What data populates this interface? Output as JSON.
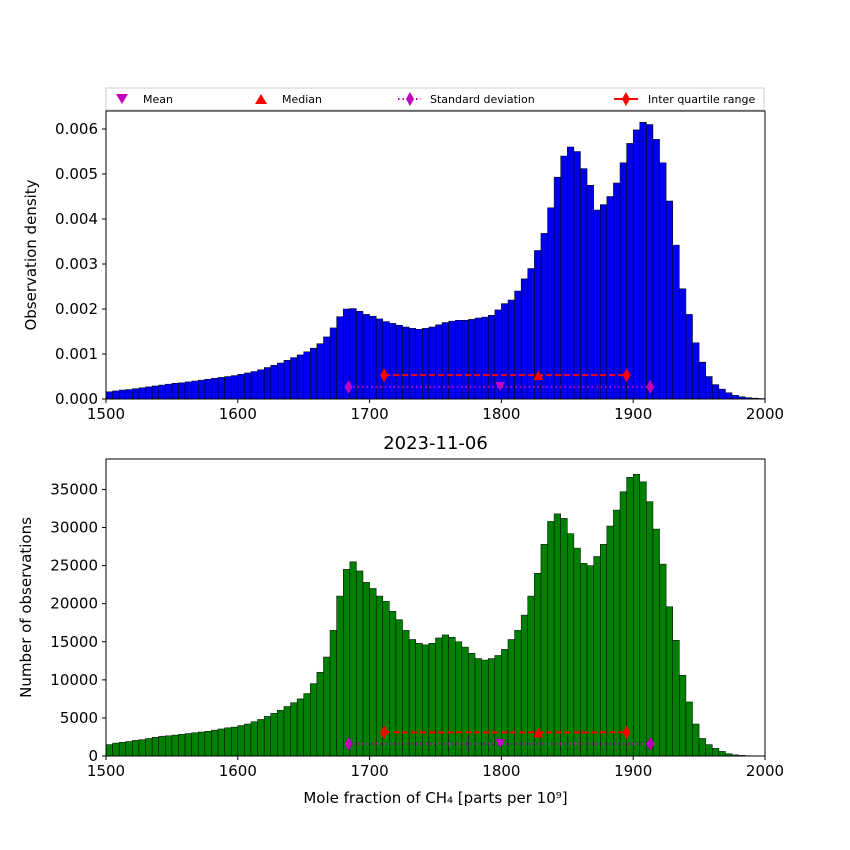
{
  "legend": {
    "mean": "Mean",
    "median": "Median",
    "std": "Standard deviation",
    "iqr": "Inter quartile range"
  },
  "colors": {
    "top_bars": "#0000ee",
    "bottom_bars": "#008000",
    "mean": "#bf00bf",
    "median": "#ff0000",
    "std": "#bf00bf",
    "iqr": "#ff0000"
  },
  "chart_data": [
    {
      "type": "bar",
      "title": "",
      "xlabel": "",
      "ylabel": "Observation density",
      "xlim": [
        1500,
        2000
      ],
      "ylim": [
        0,
        0.0064
      ],
      "x_ticks": [
        "1500",
        "1600",
        "1700",
        "1800",
        "1900",
        "2000"
      ],
      "y_ticks": [
        "0.000",
        "0.001",
        "0.002",
        "0.003",
        "0.004",
        "0.005",
        "0.006"
      ],
      "bin_start": 1500,
      "bin_width": 5,
      "values": [
        0.00016,
        0.00018,
        0.0002,
        0.00021,
        0.00023,
        0.00025,
        0.00027,
        0.00029,
        0.00031,
        0.00033,
        0.00035,
        0.00036,
        0.00038,
        0.0004,
        0.00042,
        0.00044,
        0.00046,
        0.00048,
        0.0005,
        0.00052,
        0.00055,
        0.00058,
        0.00061,
        0.00065,
        0.0007,
        0.00075,
        0.0008,
        0.00086,
        0.00092,
        0.00098,
        0.00105,
        0.00113,
        0.00123,
        0.00138,
        0.00158,
        0.00183,
        0.002,
        0.00201,
        0.00195,
        0.00188,
        0.00184,
        0.00178,
        0.00172,
        0.00168,
        0.00164,
        0.0016,
        0.00157,
        0.00155,
        0.00157,
        0.0016,
        0.00165,
        0.0017,
        0.00173,
        0.00175,
        0.00175,
        0.00177,
        0.0018,
        0.00182,
        0.00186,
        0.00198,
        0.00212,
        0.0022,
        0.0024,
        0.00267,
        0.0029,
        0.0033,
        0.00368,
        0.00425,
        0.00493,
        0.0054,
        0.0056,
        0.0055,
        0.00512,
        0.00475,
        0.0042,
        0.00432,
        0.0045,
        0.0048,
        0.00525,
        0.00568,
        0.00598,
        0.00615,
        0.0061,
        0.00577,
        0.00525,
        0.0044,
        0.00342,
        0.00245,
        0.00188,
        0.00125,
        0.00082,
        0.0005,
        0.00032,
        0.00022,
        0.00014,
        8e-05,
        5e-05,
        3e-05,
        2e-05,
        1e-05
      ],
      "stats": {
        "mean": 1799,
        "median": 1828,
        "std_range": [
          1684,
          1913
        ],
        "iqr_range": [
          1711,
          1895
        ],
        "std_y": 0.00027,
        "iqr_y": 0.00053
      }
    },
    {
      "type": "bar",
      "title": "2023-11-06",
      "xlabel": "Mole fraction of CH₄ [parts per 10⁹]",
      "ylabel": "Number of observations",
      "xlim": [
        1500,
        2000
      ],
      "ylim": [
        0,
        39000
      ],
      "x_ticks": [
        "1500",
        "1600",
        "1700",
        "1800",
        "1900",
        "2000"
      ],
      "y_ticks": [
        "0",
        "5000",
        "10000",
        "15000",
        "20000",
        "25000",
        "30000",
        "35000"
      ],
      "bin_start": 1500,
      "bin_width": 5,
      "values": [
        1500,
        1700,
        1800,
        1900,
        2050,
        2150,
        2300,
        2450,
        2600,
        2650,
        2750,
        2850,
        2950,
        3050,
        3150,
        3250,
        3400,
        3550,
        3700,
        3800,
        4000,
        4200,
        4500,
        4800,
        5200,
        5600,
        6000,
        6500,
        7000,
        7500,
        8200,
        9500,
        11000,
        13000,
        16500,
        21000,
        24500,
        25500,
        24300,
        22800,
        22000,
        21000,
        20300,
        19000,
        17900,
        16500,
        15300,
        14800,
        14600,
        14800,
        15500,
        15900,
        15600,
        15000,
        14300,
        13500,
        12800,
        12600,
        12800,
        13200,
        14000,
        15300,
        16500,
        18500,
        21000,
        24000,
        27800,
        30800,
        31800,
        31200,
        29200,
        27300,
        25300,
        25000,
        26200,
        27800,
        30200,
        32300,
        34700,
        36600,
        37000,
        36000,
        33400,
        29800,
        25200,
        19600,
        15200,
        10600,
        7100,
        4200,
        2300,
        1500,
        1000,
        600,
        300,
        150,
        80,
        40,
        20,
        10
      ],
      "stats": {
        "mean": 1799,
        "median": 1828,
        "std_range": [
          1684,
          1913
        ],
        "iqr_range": [
          1711,
          1895
        ],
        "std_y": 1600,
        "iqr_y": 3100
      }
    }
  ]
}
